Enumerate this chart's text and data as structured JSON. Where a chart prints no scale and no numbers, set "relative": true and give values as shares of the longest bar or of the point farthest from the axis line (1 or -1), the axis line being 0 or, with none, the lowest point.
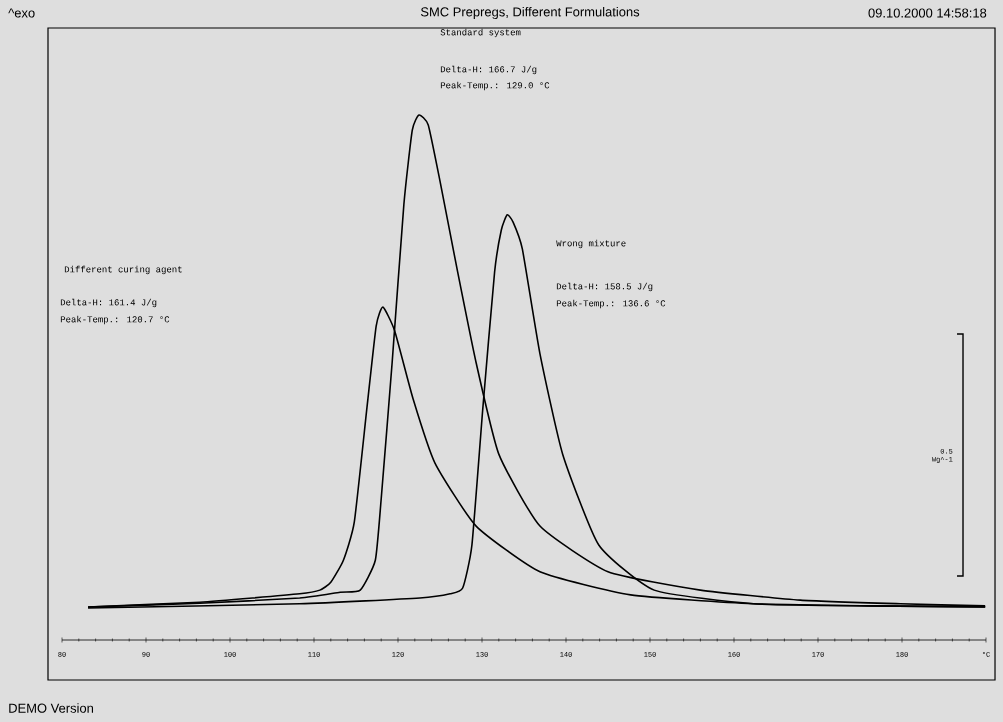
{
  "chart_data": {
    "type": "line",
    "title": "SMC Prepregs, Different Formulations",
    "relative": true,
    "xlim": [
      80,
      190
    ],
    "xticks": [
      80,
      90,
      100,
      110,
      120,
      130,
      140,
      150,
      160,
      170,
      180,
      {
        "value": 190,
        "label": "°C"
      }
    ],
    "annotations": [
      "Standard system",
      "Delta-H: 166.7 J/g",
      "Peak-Temp.: 129.0 °C",
      "Wrong mixture",
      "Delta-H: 158.5 J/g",
      "Peak-Temp.: 136.6 °C",
      "Different curing agent",
      "Delta-H: 161.4 J/g",
      "Peak-Temp.: 120.7 °C",
      "09.10.2000 14:58:18",
      "DEMO Version",
      "0.5 Wg^-1",
      "^exo"
    ],
    "series": [
      {
        "color": "#000000",
        "x": [
          83.1,
          96.4,
          108.3,
          113.1,
          115.5,
          117.3,
          118.0,
          119.3,
          120.7,
          121.7,
          122.5,
          123.6,
          125.0,
          127.1,
          129.3,
          132.0,
          136.9,
          145.0,
          156.0,
          167.9,
          179.8,
          189.9
        ],
        "values": [
          0.063,
          0.07,
          0.08,
          0.091,
          0.095,
          0.152,
          0.269,
          0.528,
          0.83,
          0.971,
          1.0,
          0.981,
          0.874,
          0.701,
          0.528,
          0.354,
          0.217,
          0.13,
          0.095,
          0.076,
          0.069,
          0.065
        ]
      },
      {
        "color": "#000000",
        "x": [
          83.1,
          96.4,
          108.3,
          110.7,
          112.0,
          113.5,
          114.8,
          116.3,
          117.4,
          118.2,
          119.6,
          121.8,
          124.4,
          129.3,
          136.9,
          147.7,
          162.3,
          176.2,
          189.9
        ],
        "values": [
          0.063,
          0.072,
          0.088,
          0.095,
          0.11,
          0.152,
          0.225,
          0.442,
          0.598,
          0.634,
          0.589,
          0.459,
          0.337,
          0.217,
          0.13,
          0.086,
          0.069,
          0.065,
          0.063
        ]
      },
      {
        "color": "#000000",
        "x": [
          83.1,
          108.3,
          122.6,
          126.2,
          127.7,
          128.8,
          130.1,
          131.5,
          132.3,
          133.0,
          133.7,
          134.8,
          136.9,
          139.6,
          143.9,
          150.5,
          162.3,
          176.2,
          189.9
        ],
        "values": [
          0.061,
          0.069,
          0.08,
          0.088,
          0.099,
          0.181,
          0.442,
          0.701,
          0.781,
          0.81,
          0.796,
          0.745,
          0.545,
          0.354,
          0.181,
          0.095,
          0.069,
          0.065,
          0.063
        ]
      }
    ]
  }
}
